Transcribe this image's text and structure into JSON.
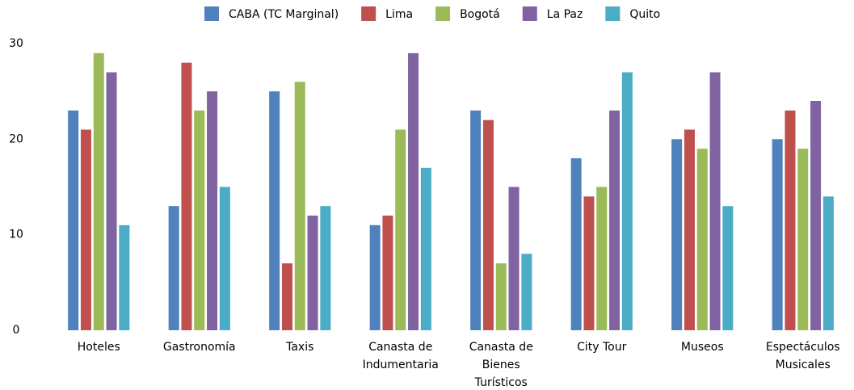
{
  "chart_data": {
    "type": "bar",
    "categories": [
      "Hoteles",
      "Gastronomía",
      "Taxis",
      "Canasta de Indumentaria",
      "Canasta de Bienes Turísticos",
      "City Tour",
      "Museos",
      "Espectáculos Musicales"
    ],
    "series": [
      {
        "name": "CABA (TC Marginal)",
        "color": "#4f81bd",
        "values": [
          23,
          13,
          25,
          11,
          23,
          18,
          20,
          20
        ]
      },
      {
        "name": "Lima",
        "color": "#c0504d",
        "values": [
          21,
          28,
          7,
          12,
          22,
          14,
          21,
          23
        ]
      },
      {
        "name": "Bogotá",
        "color": "#9bbb59",
        "values": [
          29,
          23,
          26,
          21,
          7,
          15,
          19,
          19
        ]
      },
      {
        "name": "La Paz",
        "color": "#8064a2",
        "values": [
          27,
          25,
          12,
          29,
          15,
          23,
          27,
          24
        ]
      },
      {
        "name": "Quito",
        "color": "#4bacc6",
        "values": [
          11,
          15,
          13,
          17,
          8,
          27,
          13,
          14
        ]
      }
    ],
    "ylim": [
      0,
      30
    ],
    "yticks": [
      0,
      10,
      20,
      30
    ],
    "grid": false,
    "legend": "top"
  }
}
